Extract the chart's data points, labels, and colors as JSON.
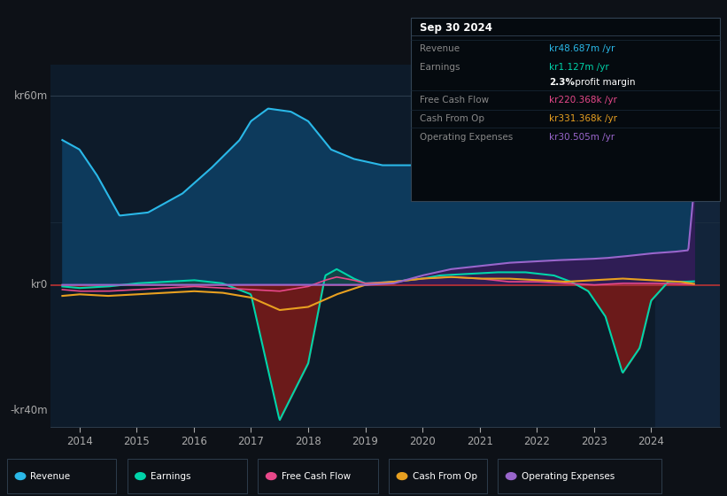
{
  "bg_color": "#0d1117",
  "plot_bg_color": "#0d1b2a",
  "title": "Sep 30 2024",
  "ylim": [
    -45000000,
    70000000
  ],
  "xlim": [
    2013.5,
    2025.2
  ],
  "colors": {
    "revenue": "#2ab8e8",
    "earnings": "#00d4aa",
    "free_cash_flow": "#e8488a",
    "cash_from_op": "#e8a020",
    "operating_expenses": "#9966cc"
  },
  "legend": [
    {
      "label": "Revenue",
      "color": "#2ab8e8"
    },
    {
      "label": "Earnings",
      "color": "#00d4aa"
    },
    {
      "label": "Free Cash Flow",
      "color": "#e8488a"
    },
    {
      "label": "Cash From Op",
      "color": "#e8a020"
    },
    {
      "label": "Operating Expenses",
      "color": "#9966cc"
    }
  ],
  "x_ticks": [
    2014,
    2015,
    2016,
    2017,
    2018,
    2019,
    2020,
    2021,
    2022,
    2023,
    2024
  ],
  "x_labels": [
    "2014",
    "2015",
    "2016",
    "2017",
    "2018",
    "2019",
    "2020",
    "2021",
    "2022",
    "2023",
    "2024"
  ],
  "info_title": "Sep 30 2024",
  "info_rows": [
    {
      "label": "Revenue",
      "value": "kr48.687m /yr",
      "color": "#2ab8e8"
    },
    {
      "label": "Earnings",
      "value": "kr1.127m /yr",
      "color": "#00d4aa"
    },
    {
      "label": "",
      "value": "2.3% profit margin",
      "color": "#ffffff"
    },
    {
      "label": "Free Cash Flow",
      "value": "kr220.368k /yr",
      "color": "#e8488a"
    },
    {
      "label": "Cash From Op",
      "value": "kr331.368k /yr",
      "color": "#e8a020"
    },
    {
      "label": "Operating Expenses",
      "value": "kr30.505m /yr",
      "color": "#9966cc"
    }
  ]
}
